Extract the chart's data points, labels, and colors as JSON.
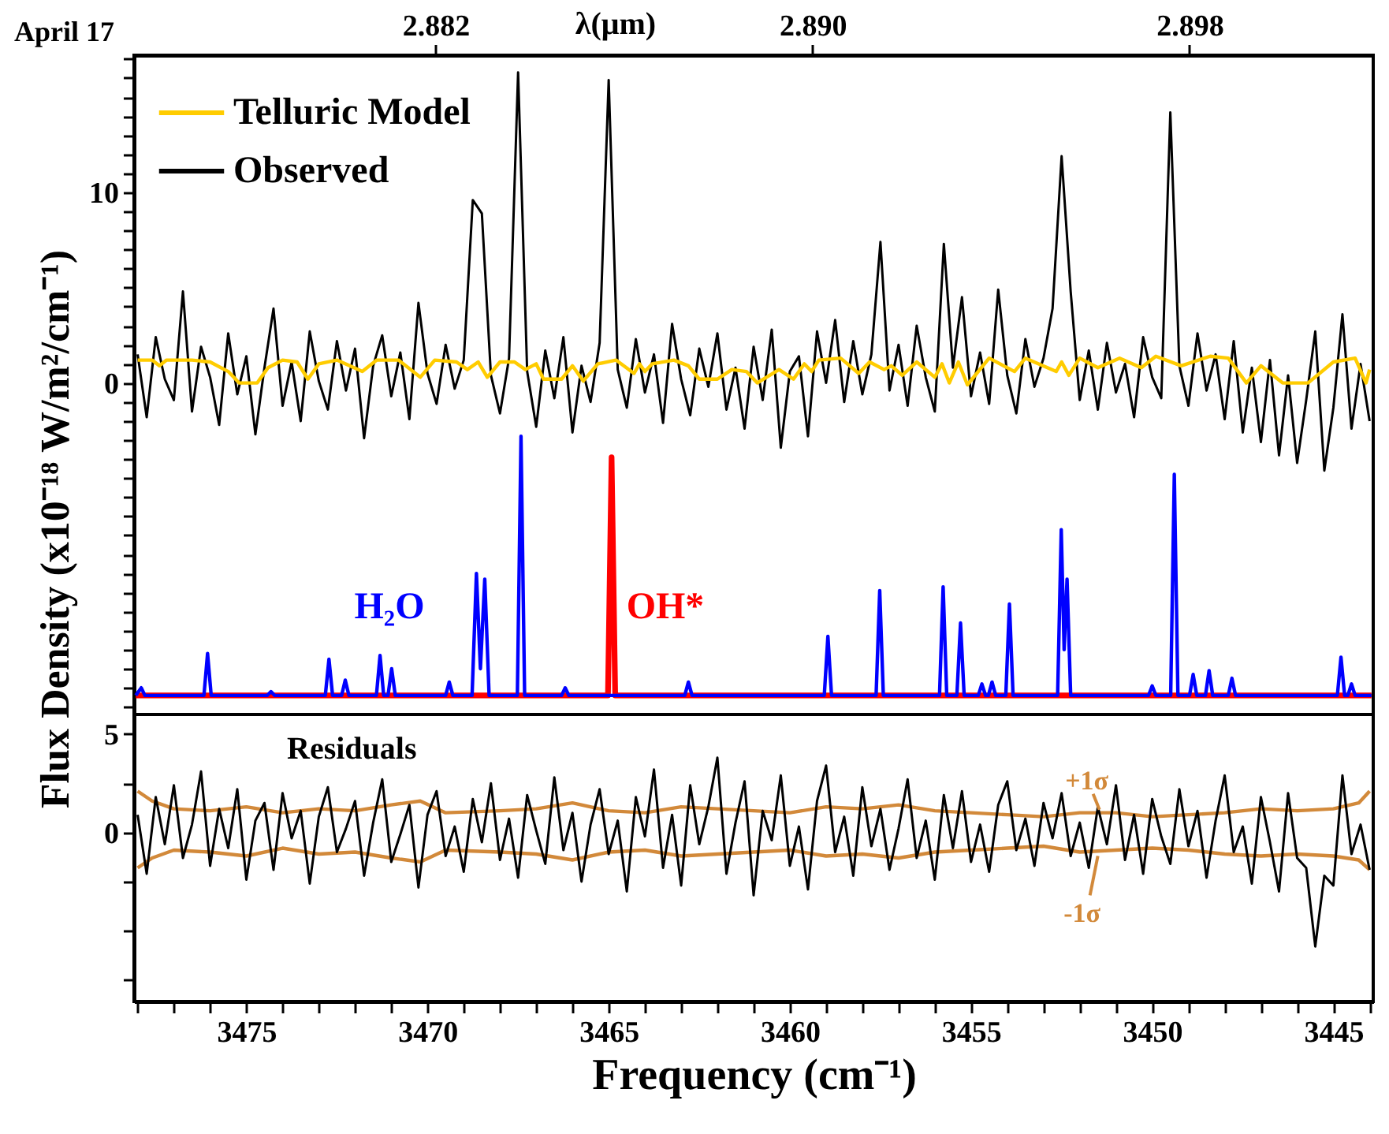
{
  "chart_data": [
    {
      "type": "line",
      "ylabel": "Flux Density (x10⁻¹⁸ W/m²/cm⁻¹)",
      "x2label": "λ(μm)",
      "legend": "top left",
      "tick_labels": "y",
      "xlim": [
        3478.1,
        3443.9
      ],
      "ylim": [
        -17.4,
        17.2
      ],
      "x2lim": [
        2.8756,
        2.9019
      ],
      "x2ticks": [
        2.882,
        {
          "value": 2.89,
          "label": "2.890"
        },
        2.898
      ],
      "yticks": [
        {
          "value": -17,
          "label": null
        },
        {
          "value": -16,
          "label": null
        },
        {
          "value": -15,
          "label": null
        },
        {
          "value": -14,
          "label": null
        },
        {
          "value": -13,
          "label": null
        },
        {
          "value": -12,
          "label": null
        },
        {
          "value": -11,
          "label": null
        },
        {
          "value": -10,
          "label": null
        },
        {
          "value": -9,
          "label": null
        },
        {
          "value": -8,
          "label": null
        },
        {
          "value": -7,
          "label": null
        },
        {
          "value": -6,
          "label": null
        },
        {
          "value": -5,
          "label": null
        },
        {
          "value": -4,
          "label": null
        },
        {
          "value": -3,
          "label": null
        },
        {
          "value": -2,
          "label": null
        },
        {
          "value": -1,
          "label": null
        },
        0,
        {
          "value": 1,
          "label": null
        },
        {
          "value": 2,
          "label": null
        },
        {
          "value": 3,
          "label": null
        },
        {
          "value": 4,
          "label": null
        },
        {
          "value": 5,
          "label": null
        },
        {
          "value": 6,
          "label": null
        },
        {
          "value": 7,
          "label": null
        },
        {
          "value": 8,
          "label": null
        },
        {
          "value": 9,
          "label": null
        },
        10,
        {
          "value": 11,
          "label": null
        },
        {
          "value": 12,
          "label": null
        },
        {
          "value": 13,
          "label": null
        },
        {
          "value": 14,
          "label": null
        },
        {
          "value": 15,
          "label": null
        },
        {
          "value": 16,
          "label": null
        },
        {
          "value": 17,
          "label": null
        }
      ],
      "annotations": [
        "April 17",
        "H₂O",
        "OH*"
      ],
      "x": [
        3478,
        3477.75,
        3477.5,
        3477.25,
        3477,
        3476.75,
        3476.5,
        3476.25,
        3476,
        3475.75,
        3475.5,
        3475.25,
        3475,
        3474.75,
        3474.5,
        3474.25,
        3474,
        3473.75,
        3473.5,
        3473.25,
        3473,
        3472.75,
        3472.5,
        3472.25,
        3472,
        3471.75,
        3471.5,
        3471.25,
        3471,
        3470.75,
        3470.5,
        3470.25,
        3470,
        3469.75,
        3469.5,
        3469.25,
        3469,
        3468.75,
        3468.5,
        3468.25,
        3468,
        3467.75,
        3467.5,
        3467.25,
        3467,
        3466.75,
        3466.5,
        3466.25,
        3466,
        3465.75,
        3465.5,
        3465.25,
        3465,
        3464.75,
        3464.5,
        3464.25,
        3464,
        3463.75,
        3463.5,
        3463.25,
        3463,
        3462.75,
        3462.5,
        3462.25,
        3462,
        3461.75,
        3461.5,
        3461.25,
        3461,
        3460.75,
        3460.5,
        3460.25,
        3460,
        3459.75,
        3459.5,
        3459.25,
        3459,
        3458.75,
        3458.5,
        3458.25,
        3458,
        3457.75,
        3457.5,
        3457.25,
        3457,
        3456.75,
        3456.5,
        3456.25,
        3456,
        3455.75,
        3455.5,
        3455.25,
        3455,
        3454.75,
        3454.5,
        3454.25,
        3454,
        3453.75,
        3453.5,
        3453.25,
        3453,
        3452.75,
        3452.5,
        3452.25,
        3452,
        3451.75,
        3451.5,
        3451.25,
        3451,
        3450.75,
        3450.5,
        3450.25,
        3450,
        3449.75,
        3449.5,
        3449.25,
        3449,
        3448.75,
        3448.5,
        3448.25,
        3448,
        3447.75,
        3447.5,
        3447.25,
        3447,
        3446.75,
        3446.5,
        3446.25,
        3446,
        3445.75,
        3445.5,
        3445.25,
        3445,
        3444.75,
        3444.5,
        3444.25,
        3444
      ],
      "series": [
        {
          "name": "Telluric Model",
          "color": "#ffcc00",
          "x": [
            3478.0,
            3477.6,
            3477.4,
            3477.2,
            3476.5,
            3476.0,
            3475.5,
            3475.2,
            3474.7,
            3474.4,
            3474.0,
            3473.6,
            3473.3,
            3473.0,
            3472.5,
            3471.8,
            3471.4,
            3470.8,
            3470.2,
            3469.8,
            3469.2,
            3468.9,
            3468.6,
            3468.35,
            3468.0,
            3467.6,
            3467.3,
            3467.0,
            3466.8,
            3466.3,
            3466.0,
            3465.7,
            3465.3,
            3464.8,
            3464.3,
            3464.15,
            3464.0,
            3463.8,
            3463.2,
            3462.8,
            3462.5,
            3462.0,
            3461.6,
            3461.2,
            3460.9,
            3460.3,
            3459.9,
            3459.6,
            3459.4,
            3459.2,
            3458.6,
            3458.1,
            3457.8,
            3457.4,
            3457.2,
            3456.9,
            3456.5,
            3456.0,
            3455.8,
            3455.6,
            3455.35,
            3455.1,
            3454.5,
            3453.8,
            3453.5,
            3452.65,
            3452.5,
            3452.3,
            3452.0,
            3451.5,
            3450.9,
            3450.3,
            3449.9,
            3449.2,
            3448.4,
            3447.9,
            3447.4,
            3447.0,
            3446.4,
            3445.7,
            3445.0,
            3444.4,
            3444.1,
            3444.0
          ],
          "values": [
            1.2,
            1.2,
            0.9,
            1.2,
            1.2,
            1.1,
            0.6,
            0.0,
            0.0,
            0.8,
            1.2,
            1.1,
            0.2,
            1.0,
            1.2,
            0.6,
            1.2,
            1.2,
            0.3,
            1.2,
            1.1,
            0.7,
            1.1,
            0.3,
            1.1,
            1.1,
            0.7,
            1.0,
            0.2,
            0.2,
            0.9,
            0.1,
            1.0,
            1.2,
            0.5,
            1.0,
            0.6,
            1.0,
            1.2,
            0.9,
            0.2,
            0.2,
            0.7,
            0.6,
            0.0,
            0.7,
            0.2,
            1.0,
            0.6,
            1.2,
            1.3,
            0.5,
            1.1,
            0.7,
            0.9,
            0.4,
            1.1,
            0.3,
            1.0,
            0.0,
            1.1,
            -0.1,
            1.3,
            0.6,
            1.3,
            0.6,
            1.1,
            0.4,
            1.3,
            0.8,
            1.3,
            0.8,
            1.4,
            0.9,
            1.4,
            1.3,
            0.0,
            0.9,
            0.0,
            0.0,
            1.1,
            1.3,
            0.0,
            0.7
          ]
        },
        {
          "name": "Observed",
          "color": "#000000",
          "values": [
            1.5,
            -1.8,
            2.4,
            0.2,
            -0.9,
            4.8,
            -1.5,
            1.9,
            0.3,
            -2.2,
            2.6,
            -0.6,
            1.4,
            -2.7,
            0.8,
            3.9,
            -1.2,
            1.1,
            -2.0,
            2.7,
            0.1,
            -1.4,
            2.2,
            -0.4,
            1.8,
            -2.9,
            0.9,
            2.5,
            -0.7,
            1.6,
            -1.9,
            4.2,
            0.5,
            -1.1,
            2.0,
            -0.3,
            1.2,
            9.6,
            8.9,
            0.4,
            -1.6,
            1.3,
            16.3,
            0.6,
            -2.3,
            1.7,
            -0.8,
            2.4,
            -2.6,
            0.9,
            -1.0,
            2.1,
            15.9,
            0.7,
            -1.3,
            2.3,
            -0.5,
            1.5,
            -2.1,
            3.1,
            0.2,
            -1.7,
            1.8,
            -0.2,
            2.6,
            -1.4,
            0.8,
            -2.4,
            1.9,
            -0.9,
            2.8,
            -3.4,
            0.6,
            1.4,
            -2.8,
            2.7,
            0.0,
            3.3,
            -1.0,
            2.2,
            -0.6,
            1.5,
            7.4,
            -0.4,
            2.0,
            -1.2,
            3.0,
            0.3,
            -1.5,
            7.3,
            0.8,
            4.5,
            -0.7,
            1.6,
            -1.1,
            4.9,
            0.4,
            -1.6,
            2.3,
            -0.2,
            1.3,
            3.9,
            11.9,
            4.8,
            -0.9,
            1.7,
            -1.4,
            2.1,
            -0.5,
            1.0,
            -1.8,
            2.4,
            0.3,
            -0.8,
            14.2,
            0.9,
            -1.2,
            2.6,
            -0.4,
            1.5,
            -1.9,
            2.2,
            -2.6,
            0.8,
            -3.1,
            1.2,
            -3.8,
            0.4,
            -4.2,
            -0.9,
            2.7,
            -4.6,
            -1.3,
            3.6,
            -2.4,
            1.0,
            -2.0
          ]
        },
        {
          "color": "#0000ff",
          "x": [
            3478.05,
            3477.9,
            3477.8,
            3476.17,
            3476.07,
            3475.97,
            3474.42,
            3474.32,
            3474.22,
            3472.82,
            3472.72,
            3472.62,
            3472.37,
            3472.27,
            3472.17,
            3471.41,
            3471.31,
            3471.21,
            3471.09,
            3470.99,
            3470.89,
            3469.5,
            3469.4,
            3469.3,
            3468.77,
            3468.65,
            3468.54,
            3468.42,
            3468.3,
            3467.52,
            3467.42,
            3467.32,
            3466.3,
            3466.2,
            3466.1,
            3462.9,
            3462.8,
            3462.7,
            3459.05,
            3458.95,
            3458.85,
            3457.62,
            3457.52,
            3457.42,
            3455.87,
            3455.77,
            3455.67,
            3455.39,
            3455.29,
            3455.19,
            3454.8,
            3454.7,
            3454.6,
            3454.52,
            3454.42,
            3454.32,
            3454.04,
            3453.94,
            3453.84,
            3452.61,
            3452.51,
            3452.43,
            3452.35,
            3452.25,
            3450.1,
            3450.0,
            3449.9,
            3449.49,
            3449.39,
            3449.29,
            3448.97,
            3448.87,
            3448.77,
            3448.53,
            3448.43,
            3448.33,
            3447.9,
            3447.8,
            3447.7,
            3444.89,
            3444.79,
            3444.69,
            3444.6,
            3444.5,
            3444.4,
            3443.95
          ],
          "values": [
            -16.4,
            -16.0,
            -16.4,
            -16.4,
            -14.2,
            -16.4,
            -16.4,
            -16.2,
            -16.4,
            -16.4,
            -14.5,
            -16.4,
            -16.4,
            -15.6,
            -16.4,
            -16.4,
            -14.3,
            -16.4,
            -16.4,
            -15.0,
            -16.4,
            -16.4,
            -15.7,
            -16.4,
            -16.4,
            -10.0,
            -15.0,
            -10.3,
            -16.4,
            -16.4,
            -2.8,
            -16.4,
            -16.4,
            -16.0,
            -16.4,
            -16.4,
            -15.7,
            -16.4,
            -16.4,
            -13.3,
            -16.4,
            -16.4,
            -10.9,
            -16.4,
            -16.4,
            -10.7,
            -16.4,
            -16.4,
            -12.6,
            -16.4,
            -16.4,
            -15.8,
            -16.4,
            -16.4,
            -15.7,
            -16.4,
            -16.4,
            -11.6,
            -16.4,
            -16.4,
            -7.7,
            -14.0,
            -10.3,
            -16.4,
            -16.4,
            -15.9,
            -16.4,
            -16.4,
            -4.8,
            -16.4,
            -16.4,
            -15.3,
            -16.4,
            -16.4,
            -15.1,
            -16.4,
            -16.4,
            -15.5,
            -16.4,
            -16.4,
            -14.4,
            -16.4,
            -16.4,
            -15.8,
            -16.4,
            -16.4
          ]
        },
        {
          "color": "#ff0000",
          "x": [
            3478.05,
            3465.02,
            3464.92,
            3464.82,
            3443.95
          ],
          "values": [
            -16.4,
            -16.4,
            -3.9,
            -16.4,
            -16.4
          ]
        }
      ]
    },
    {
      "type": "line",
      "xlabel": "Frequency (cm⁻¹)",
      "xlim": [
        3478.1,
        3443.9
      ],
      "ylim": [
        -8.6,
        6.0
      ],
      "xticks": [
        {
          "value": 3478,
          "label": null
        },
        {
          "value": 3477,
          "label": null
        },
        {
          "value": 3476,
          "label": null
        },
        3475,
        {
          "value": 3474,
          "label": null
        },
        {
          "value": 3473,
          "label": null
        },
        {
          "value": 3472,
          "label": null
        },
        {
          "value": 3471,
          "label": null
        },
        3470,
        {
          "value": 3469,
          "label": null
        },
        {
          "value": 3468,
          "label": null
        },
        {
          "value": 3467,
          "label": null
        },
        {
          "value": 3466,
          "label": null
        },
        3465,
        {
          "value": 3464,
          "label": null
        },
        {
          "value": 3463,
          "label": null
        },
        {
          "value": 3462,
          "label": null
        },
        {
          "value": 3461,
          "label": null
        },
        3460,
        {
          "value": 3459,
          "label": null
        },
        {
          "value": 3458,
          "label": null
        },
        {
          "value": 3457,
          "label": null
        },
        {
          "value": 3456,
          "label": null
        },
        3455,
        {
          "value": 3454,
          "label": null
        },
        {
          "value": 3453,
          "label": null
        },
        {
          "value": 3452,
          "label": null
        },
        {
          "value": 3451,
          "label": null
        },
        3450,
        {
          "value": 3449,
          "label": null
        },
        {
          "value": 3448,
          "label": null
        },
        {
          "value": 3447,
          "label": null
        },
        {
          "value": 3446,
          "label": null
        },
        3445,
        {
          "value": 3444,
          "label": null
        }
      ],
      "yticks": [
        5,
        {
          "value": 2.5,
          "label": null
        },
        0,
        {
          "value": -2.5,
          "label": null
        },
        {
          "value": -5,
          "label": null
        },
        {
          "value": -7.5,
          "label": null
        }
      ],
      "annotations": [
        "Residuals",
        {
          "text": "+1σ",
          "x": 3451.5,
          "y": 1.0
        },
        {
          "text": "-1σ",
          "x": 3451.5,
          "y": -0.95
        }
      ],
      "x": [
        3478,
        3477.75,
        3477.5,
        3477.25,
        3477,
        3476.75,
        3476.5,
        3476.25,
        3476,
        3475.75,
        3475.5,
        3475.25,
        3475,
        3474.75,
        3474.5,
        3474.25,
        3474,
        3473.75,
        3473.5,
        3473.25,
        3473,
        3472.75,
        3472.5,
        3472.25,
        3472,
        3471.75,
        3471.5,
        3471.25,
        3471,
        3470.75,
        3470.5,
        3470.25,
        3470,
        3469.75,
        3469.5,
        3469.25,
        3469,
        3468.75,
        3468.5,
        3468.25,
        3468,
        3467.75,
        3467.5,
        3467.25,
        3467,
        3466.75,
        3466.5,
        3466.25,
        3466,
        3465.75,
        3465.5,
        3465.25,
        3465,
        3464.75,
        3464.5,
        3464.25,
        3464,
        3463.75,
        3463.5,
        3463.25,
        3463,
        3462.75,
        3462.5,
        3462.25,
        3462,
        3461.75,
        3461.5,
        3461.25,
        3461,
        3460.75,
        3460.5,
        3460.25,
        3460,
        3459.75,
        3459.5,
        3459.25,
        3459,
        3458.75,
        3458.5,
        3458.25,
        3458,
        3457.75,
        3457.5,
        3457.25,
        3457,
        3456.75,
        3456.5,
        3456.25,
        3456,
        3455.75,
        3455.5,
        3455.25,
        3455,
        3454.75,
        3454.5,
        3454.25,
        3454,
        3453.75,
        3453.5,
        3453.25,
        3453,
        3452.75,
        3452.5,
        3452.25,
        3452,
        3451.75,
        3451.5,
        3451.25,
        3451,
        3450.75,
        3450.5,
        3450.25,
        3450,
        3449.75,
        3449.5,
        3449.25,
        3449,
        3448.75,
        3448.5,
        3448.25,
        3448,
        3447.75,
        3447.5,
        3447.25,
        3447,
        3446.75,
        3446.5,
        3446.25,
        3446,
        3445.75,
        3445.5,
        3445.25,
        3445,
        3444.75,
        3444.5,
        3444.25,
        3444
      ],
      "series": [
        {
          "color": "#000000",
          "values": [
            0.9,
            -2.1,
            1.8,
            -0.6,
            2.4,
            -1.3,
            0.4,
            3.1,
            -1.7,
            1.2,
            -0.8,
            2.2,
            -2.4,
            0.6,
            1.5,
            -1.9,
            2.0,
            -0.3,
            1.1,
            -2.6,
            0.8,
            2.3,
            -1.0,
            0.2,
            1.6,
            -2.2,
            0.5,
            2.7,
            -1.5,
            -0.1,
            1.4,
            -2.8,
            0.9,
            2.1,
            -1.2,
            0.3,
            -2.0,
            1.7,
            -0.5,
            2.5,
            -1.4,
            0.7,
            -2.3,
            1.9,
            0.1,
            -1.6,
            2.8,
            -0.9,
            1.0,
            -2.5,
            0.4,
            2.2,
            -1.1,
            0.6,
            -3.0,
            1.8,
            -0.2,
            3.2,
            -1.8,
            0.9,
            -2.7,
            2.4,
            -0.6,
            1.3,
            3.8,
            -2.1,
            0.5,
            2.6,
            -3.2,
            1.1,
            -0.4,
            2.9,
            -1.7,
            0.3,
            -2.9,
            1.6,
            3.4,
            -1.0,
            0.8,
            -2.2,
            2.3,
            -0.7,
            1.2,
            -1.9,
            0.2,
            2.7,
            -1.3,
            0.6,
            -2.4,
            1.9,
            -0.8,
            2.1,
            -1.5,
            0.4,
            -2.0,
            1.4,
            2.6,
            -0.9,
            0.7,
            -1.7,
            1.5,
            -0.3,
            2.0,
            -1.2,
            0.5,
            -1.8,
            1.3,
            -0.6,
            2.4,
            -1.4,
            0.9,
            -2.1,
            1.7,
            -0.2,
            -1.6,
            2.2,
            -0.7,
            1.1,
            -2.3,
            0.6,
            2.9,
            -1.0,
            0.3,
            -2.6,
            1.8,
            -0.5,
            -3.0,
            2.0,
            -1.3,
            -1.8,
            -5.8,
            -2.2,
            -2.7,
            2.9,
            -1.1,
            0.4,
            -1.9
          ]
        },
        {
          "color": "#d2893a",
          "x": [
            3478.0,
            3477.6,
            3477.0,
            3476.0,
            3475.0,
            3474.0,
            3473.0,
            3472.0,
            3471.0,
            3470.2,
            3469.5,
            3468.0,
            3467.0,
            3466.0,
            3465.0,
            3464.0,
            3463.0,
            3462.0,
            3461.0,
            3460.0,
            3459.0,
            3458.0,
            3457.0,
            3456.0,
            3455.0,
            3454.0,
            3453.0,
            3452.0,
            3451.0,
            3450.0,
            3449.0,
            3448.0,
            3447.0,
            3446.0,
            3445.0,
            3444.3,
            3444.0
          ],
          "values": [
            2.1,
            1.6,
            1.2,
            1.1,
            1.3,
            1.0,
            1.2,
            1.1,
            1.4,
            1.6,
            1.0,
            1.1,
            1.2,
            1.5,
            1.1,
            1.0,
            1.3,
            1.2,
            1.1,
            1.0,
            1.3,
            1.2,
            1.4,
            1.1,
            1.0,
            0.9,
            0.8,
            1.0,
            1.0,
            0.8,
            0.9,
            1.0,
            1.2,
            1.1,
            1.2,
            1.5,
            2.1
          ]
        },
        {
          "color": "#d2893a",
          "x": [
            3478.0,
            3477.6,
            3477.0,
            3476.0,
            3475.0,
            3474.0,
            3473.0,
            3472.0,
            3471.0,
            3470.2,
            3469.5,
            3468.0,
            3467.0,
            3466.0,
            3465.0,
            3464.0,
            3463.0,
            3462.0,
            3461.0,
            3460.0,
            3459.0,
            3458.0,
            3457.0,
            3456.0,
            3455.0,
            3454.0,
            3453.0,
            3452.0,
            3451.0,
            3450.0,
            3449.0,
            3448.0,
            3447.0,
            3446.0,
            3445.0,
            3444.3,
            3444.0
          ],
          "values": [
            -1.8,
            -1.3,
            -0.9,
            -1.0,
            -1.2,
            -0.8,
            -1.1,
            -1.0,
            -1.3,
            -1.5,
            -0.9,
            -1.0,
            -1.1,
            -1.4,
            -1.0,
            -0.9,
            -1.2,
            -1.1,
            -1.0,
            -0.9,
            -1.2,
            -1.1,
            -1.3,
            -1.0,
            -0.9,
            -0.8,
            -0.7,
            -1.0,
            -0.9,
            -0.8,
            -0.9,
            -1.1,
            -1.2,
            -1.1,
            -1.2,
            -1.4,
            -1.9
          ]
        }
      ]
    }
  ]
}
